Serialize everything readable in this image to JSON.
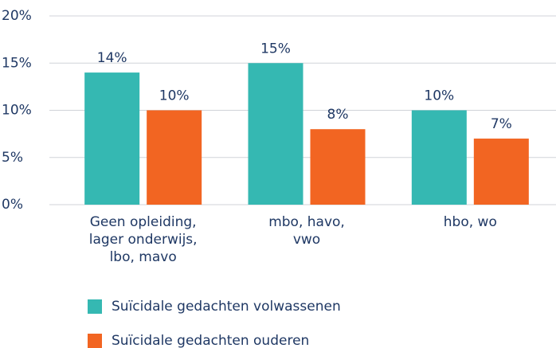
{
  "chart_data": {
    "type": "bar",
    "categories": [
      "Geen opleiding,\nlager onderwijs,\nlbo, mavo",
      "mbo, havo,\nvwo",
      "hbo, wo"
    ],
    "series": [
      {
        "name": "Suïcidale gedachten volwassenen",
        "color": "#35b8b2",
        "values": [
          14,
          15,
          10
        ],
        "value_labels": [
          "14%",
          "15%",
          "10%"
        ]
      },
      {
        "name": "Suïcidale gedachten ouderen",
        "color": "#f26522",
        "values": [
          10,
          8,
          7
        ],
        "value_labels": [
          "10%",
          "8%",
          "7%"
        ]
      }
    ],
    "ylim": [
      0,
      20
    ],
    "yticks": [
      {
        "value": 0,
        "label": "0%"
      },
      {
        "value": 5,
        "label": "5%"
      },
      {
        "value": 10,
        "label": "10%"
      },
      {
        "value": 15,
        "label": "15%"
      },
      {
        "value": 20,
        "label": "20%"
      }
    ],
    "grid": true
  }
}
